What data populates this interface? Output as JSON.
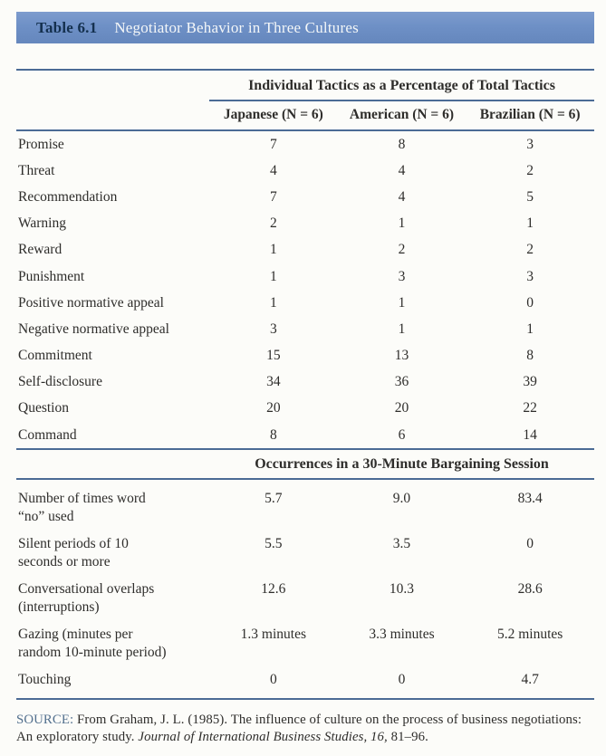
{
  "page": {
    "table_label": "Table 6.1",
    "table_title": "Negotiator Behavior in Three Cultures"
  },
  "columns": {
    "japanese": "Japanese (N = 6)",
    "american": "American (N = 6)",
    "brazilian": "Brazilian (N = 6)"
  },
  "sections": [
    {
      "header": "Individual Tactics as a Percentage of Total Tactics",
      "rows": [
        {
          "label_lines": [
            "Promise"
          ],
          "values": [
            "7",
            "8",
            "3"
          ]
        },
        {
          "label_lines": [
            "Threat"
          ],
          "values": [
            "4",
            "4",
            "2"
          ]
        },
        {
          "label_lines": [
            "Recommendation"
          ],
          "values": [
            "7",
            "4",
            "5"
          ]
        },
        {
          "label_lines": [
            "Warning"
          ],
          "values": [
            "2",
            "1",
            "1"
          ]
        },
        {
          "label_lines": [
            "Reward"
          ],
          "values": [
            "1",
            "2",
            "2"
          ]
        },
        {
          "label_lines": [
            "Punishment"
          ],
          "values": [
            "1",
            "3",
            "3"
          ]
        },
        {
          "label_lines": [
            "Positive normative appeal"
          ],
          "values": [
            "1",
            "1",
            "0"
          ]
        },
        {
          "label_lines": [
            "Negative normative appeal"
          ],
          "values": [
            "3",
            "1",
            "1"
          ]
        },
        {
          "label_lines": [
            "Commitment"
          ],
          "values": [
            "15",
            "13",
            "8"
          ]
        },
        {
          "label_lines": [
            "Self-disclosure"
          ],
          "values": [
            "34",
            "36",
            "39"
          ]
        },
        {
          "label_lines": [
            "Question"
          ],
          "values": [
            "20",
            "20",
            "22"
          ]
        },
        {
          "label_lines": [
            "Command"
          ],
          "values": [
            "8",
            "6",
            "14"
          ]
        }
      ]
    },
    {
      "header": "Occurrences in a 30-Minute Bargaining Session",
      "rows": [
        {
          "label_lines": [
            "Number of times word",
            "“no” used"
          ],
          "values": [
            "5.7",
            "9.0",
            "83.4"
          ]
        },
        {
          "label_lines": [
            "Silent periods of 10",
            "seconds or more"
          ],
          "values": [
            "5.5",
            "3.5",
            "0"
          ]
        },
        {
          "label_lines": [
            "Conversational overlaps",
            "(interruptions)"
          ],
          "values": [
            "12.6",
            "10.3",
            "28.6"
          ]
        },
        {
          "label_lines": [
            "Gazing (minutes per",
            "random 10-minute period)"
          ],
          "values": [
            "1.3 minutes",
            "3.3 minutes",
            "5.2 minutes"
          ]
        },
        {
          "label_lines": [
            "Touching"
          ],
          "values": [
            "0",
            "0",
            "4.7"
          ]
        }
      ]
    }
  ],
  "source": {
    "label": "SOURCE:",
    "text": "From Graham, J. L. (1985). The influence of culture on the process of business negotiations: An exploratory study.",
    "italic": "Journal of International Business Studies, 16,",
    "tail": "81–96."
  },
  "colors": {
    "header_bar": "#6e90c6",
    "header_label_text": "#14304e",
    "header_title_text": "#f4f7f8",
    "rule": "#4b6b95",
    "body_text": "#2e2d2b",
    "source_label": "#53708e",
    "paper": "#fcfcf9"
  }
}
